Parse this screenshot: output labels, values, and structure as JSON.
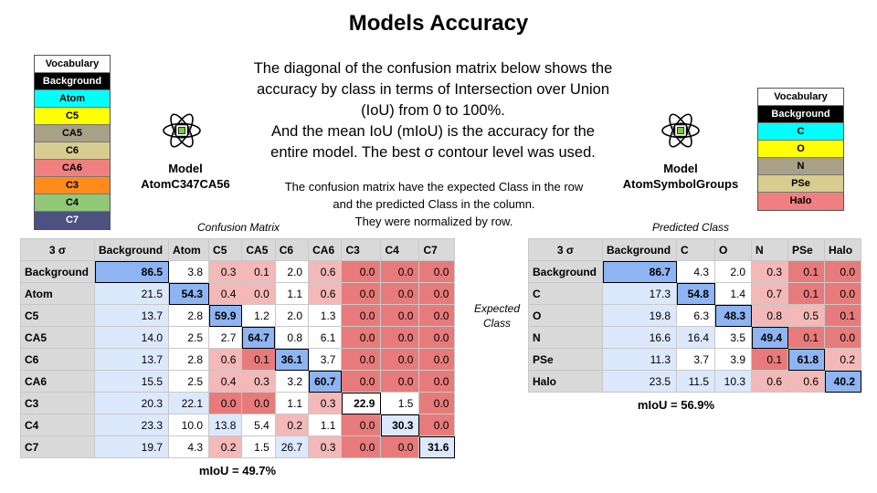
{
  "title": "Models Accuracy",
  "description": [
    "The diagonal of the confusion matrix below shows the",
    "accuracy by class in terms of Intersection over Union",
    "(IoU) from 0 to 100%.",
    "And the mean IoU (mIoU) is the accuracy for the",
    "entire model. The best σ contour level was used."
  ],
  "note": [
    "The confusion matrix have the expected Class in the row",
    "and the predicted Class in the column.",
    "They were normalized by row."
  ],
  "colors": {
    "header_gray": "#d9d9d9",
    "diag_blue": "#8eb4f2",
    "light_blue": "#dce8fb",
    "low_red": "#e77b7b",
    "mid_red": "#f3b8b8",
    "white": "#ffffff"
  },
  "vocab_left": {
    "header": "Vocabulary",
    "items": [
      {
        "label": "Background",
        "bg": "#000000",
        "fg": "#ffffff"
      },
      {
        "label": "Atom",
        "bg": "#00ffff",
        "fg": "#000000"
      },
      {
        "label": "C5",
        "bg": "#ffff00",
        "fg": "#000000"
      },
      {
        "label": "CA5",
        "bg": "#a9a088",
        "fg": "#000000"
      },
      {
        "label": "C6",
        "bg": "#d8cc90",
        "fg": "#000000"
      },
      {
        "label": "CA6",
        "bg": "#f08080",
        "fg": "#000000"
      },
      {
        "label": "C3",
        "bg": "#ff8c1a",
        "fg": "#000000"
      },
      {
        "label": "C4",
        "bg": "#90c878",
        "fg": "#000000"
      },
      {
        "label": "C7",
        "bg": "#4b5180",
        "fg": "#ffffff"
      }
    ]
  },
  "vocab_right": {
    "header": "Vocabulary",
    "items": [
      {
        "label": "Background",
        "bg": "#000000",
        "fg": "#ffffff"
      },
      {
        "label": "C",
        "bg": "#00ffff",
        "fg": "#000000"
      },
      {
        "label": "O",
        "bg": "#ffff00",
        "fg": "#000000"
      },
      {
        "label": "N",
        "bg": "#a9a088",
        "fg": "#000000"
      },
      {
        "label": "PSe",
        "bg": "#d8cc90",
        "fg": "#000000"
      },
      {
        "label": "Halo",
        "bg": "#f08080",
        "fg": "#000000"
      }
    ]
  },
  "model_left": {
    "label": "Model",
    "name": "AtomC347CA56",
    "icon": "atom-chip-icon"
  },
  "model_right": {
    "label": "Model",
    "name": "AtomSymbolGroups",
    "icon": "atom-chip-icon"
  },
  "captions": {
    "confusion_matrix": "Confusion Matrix",
    "predicted_class": "Predicted Class",
    "expected_class": [
      "Expected",
      "Class"
    ]
  },
  "chart_data": [
    {
      "type": "table",
      "title": "Confusion Matrix",
      "corner": "3 σ",
      "columns": [
        "Background",
        "Atom",
        "C5",
        "CA5",
        "C6",
        "CA6",
        "C3",
        "C4",
        "C7"
      ],
      "rows": [
        "Background",
        "Atom",
        "C5",
        "CA5",
        "C6",
        "CA6",
        "C3",
        "C4",
        "C7"
      ],
      "values": [
        [
          86.5,
          3.8,
          0.3,
          0.1,
          2.0,
          0.6,
          0.0,
          0.0,
          0.0
        ],
        [
          21.5,
          54.3,
          0.4,
          0.0,
          1.1,
          0.6,
          0.0,
          0.0,
          0.0
        ],
        [
          13.7,
          2.8,
          59.9,
          1.2,
          2.0,
          1.3,
          0.0,
          0.0,
          0.0
        ],
        [
          14.0,
          2.5,
          2.7,
          64.7,
          0.8,
          6.1,
          0.0,
          0.0,
          0.0
        ],
        [
          13.7,
          2.8,
          0.6,
          0.1,
          36.1,
          3.7,
          0.0,
          0.0,
          0.0
        ],
        [
          15.5,
          2.5,
          0.4,
          0.3,
          3.2,
          60.7,
          0.0,
          0.0,
          0.0
        ],
        [
          20.3,
          22.1,
          0.0,
          0.0,
          1.1,
          0.3,
          22.9,
          1.5,
          0.0
        ],
        [
          23.3,
          10.0,
          13.8,
          5.4,
          0.2,
          1.1,
          0.0,
          30.3,
          0.0
        ],
        [
          19.7,
          4.3,
          0.2,
          1.5,
          26.7,
          0.3,
          0.0,
          0.0,
          31.6
        ]
      ],
      "cell_colors": [
        [
          "diag_blue",
          "white",
          "mid_red",
          "mid_red",
          "white",
          "mid_red",
          "low_red",
          "low_red",
          "low_red"
        ],
        [
          "light_blue",
          "diag_blue",
          "mid_red",
          "mid_red",
          "white",
          "mid_red",
          "low_red",
          "low_red",
          "low_red"
        ],
        [
          "light_blue",
          "white",
          "diag_blue",
          "white",
          "white",
          "white",
          "low_red",
          "low_red",
          "low_red"
        ],
        [
          "light_blue",
          "white",
          "white",
          "diag_blue",
          "white",
          "white",
          "low_red",
          "low_red",
          "low_red"
        ],
        [
          "light_blue",
          "white",
          "mid_red",
          "low_red",
          "diag_blue",
          "white",
          "low_red",
          "low_red",
          "low_red"
        ],
        [
          "light_blue",
          "white",
          "mid_red",
          "mid_red",
          "white",
          "diag_blue",
          "low_red",
          "low_red",
          "low_red"
        ],
        [
          "light_blue",
          "light_blue",
          "low_red",
          "low_red",
          "white",
          "mid_red",
          "white",
          "white",
          "low_red"
        ],
        [
          "light_blue",
          "white",
          "light_blue",
          "white",
          "mid_red",
          "white",
          "low_red",
          "light_blue",
          "low_red"
        ],
        [
          "light_blue",
          "white",
          "mid_red",
          "white",
          "light_blue",
          "mid_red",
          "low_red",
          "low_red",
          "light_blue"
        ]
      ],
      "mIoU": "mIoU = 49.7%"
    },
    {
      "type": "table",
      "title": "Predicted Class",
      "corner": "3 σ",
      "columns": [
        "Background",
        "C",
        "O",
        "N",
        "PSe",
        "Halo"
      ],
      "rows": [
        "Background",
        "C",
        "O",
        "N",
        "PSe",
        "Halo"
      ],
      "values": [
        [
          86.7,
          4.3,
          2.0,
          0.3,
          0.1,
          0.0
        ],
        [
          17.3,
          54.8,
          1.4,
          0.7,
          0.1,
          0.0
        ],
        [
          19.8,
          6.3,
          48.3,
          0.8,
          0.5,
          0.1
        ],
        [
          16.6,
          16.4,
          3.5,
          49.4,
          0.1,
          0.0
        ],
        [
          11.3,
          3.7,
          3.9,
          0.1,
          61.8,
          0.2
        ],
        [
          23.5,
          11.5,
          10.3,
          0.6,
          0.6,
          40.2
        ]
      ],
      "cell_colors": [
        [
          "diag_blue",
          "white",
          "white",
          "mid_red",
          "low_red",
          "low_red"
        ],
        [
          "light_blue",
          "diag_blue",
          "white",
          "mid_red",
          "low_red",
          "low_red"
        ],
        [
          "light_blue",
          "white",
          "diag_blue",
          "mid_red",
          "mid_red",
          "low_red"
        ],
        [
          "light_blue",
          "light_blue",
          "white",
          "diag_blue",
          "low_red",
          "low_red"
        ],
        [
          "light_blue",
          "white",
          "white",
          "low_red",
          "diag_blue",
          "mid_red"
        ],
        [
          "light_blue",
          "light_blue",
          "light_blue",
          "mid_red",
          "mid_red",
          "diag_blue"
        ]
      ],
      "mIoU": "mIoU = 56.9%"
    }
  ]
}
